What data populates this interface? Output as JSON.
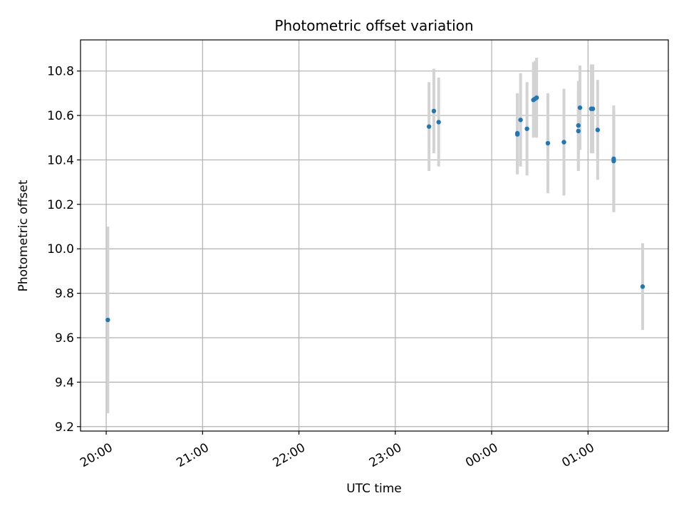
{
  "chart_data": {
    "type": "scatter",
    "title": "Photometric offset variation",
    "xlabel": "UTC time",
    "ylabel": "Photometric offset",
    "x_tick_labels": [
      "20:00",
      "21:00",
      "22:00",
      "23:00",
      "00:00",
      "01:00"
    ],
    "x_tick_minutes": [
      0,
      60,
      120,
      180,
      240,
      300
    ],
    "xlim_minutes": [
      -16,
      350
    ],
    "x_tick_note_units": "minutes after 20:00 UTC",
    "y_ticks": [
      9.2,
      9.4,
      9.6,
      9.8,
      10.0,
      10.2,
      10.4,
      10.6,
      10.8
    ],
    "y_tick_labels": [
      "9.2",
      "9.4",
      "9.6",
      "9.8",
      "10.0",
      "10.2",
      "10.4",
      "10.6",
      "10.8"
    ],
    "ylim": [
      9.18,
      10.94
    ],
    "grid": true,
    "series": [
      {
        "marker_color": "#1f77b4",
        "errorbar_color": "#d3d3d3",
        "points": [
          {
            "x": "20:01",
            "y": 9.68,
            "err": 0.42
          },
          {
            "x": "23:21",
            "y": 10.55,
            "err": 0.2
          },
          {
            "x": "23:24",
            "y": 10.62,
            "err": 0.19
          },
          {
            "x": "23:27",
            "y": 10.57,
            "err": 0.2
          },
          {
            "x": "00:16",
            "y": 10.52,
            "err": 0.18
          },
          {
            "x": "00:16",
            "y": 10.515,
            "err": 0.18
          },
          {
            "x": "00:18",
            "y": 10.58,
            "err": 0.21
          },
          {
            "x": "00:22",
            "y": 10.54,
            "err": 0.21
          },
          {
            "x": "00:26",
            "y": 10.67,
            "err": 0.17
          },
          {
            "x": "00:27",
            "y": 10.675,
            "err": 0.17
          },
          {
            "x": "00:28",
            "y": 10.68,
            "err": 0.18
          },
          {
            "x": "00:35",
            "y": 10.475,
            "err": 0.225
          },
          {
            "x": "00:45",
            "y": 10.48,
            "err": 0.24
          },
          {
            "x": "00:54",
            "y": 10.53,
            "err": 0.18
          },
          {
            "x": "00:54",
            "y": 10.555,
            "err": 0.2
          },
          {
            "x": "00:55",
            "y": 10.635,
            "err": 0.19
          },
          {
            "x": "01:02",
            "y": 10.63,
            "err": 0.2
          },
          {
            "x": "01:03",
            "y": 10.63,
            "err": 0.2
          },
          {
            "x": "01:06",
            "y": 10.535,
            "err": 0.225
          },
          {
            "x": "01:16",
            "y": 10.405,
            "err": 0.24
          },
          {
            "x": "01:16",
            "y": 10.395,
            "err": 0.23
          },
          {
            "x": "01:34",
            "y": 9.83,
            "err": 0.195
          }
        ]
      }
    ]
  }
}
